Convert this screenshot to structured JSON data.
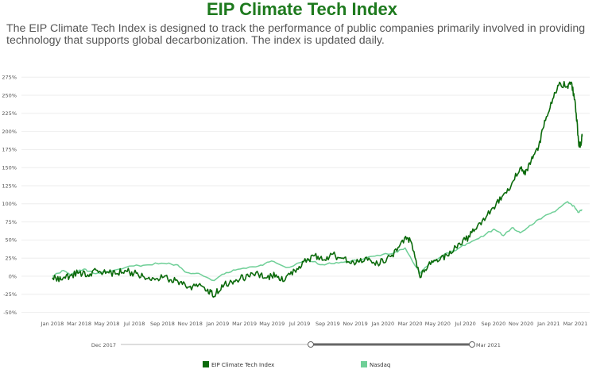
{
  "page": {
    "title": "EIP Climate Tech Index",
    "description": "The EIP Climate Tech Index is designed to track the performance of public companies primarily involved in providing technology that supports global decarbonization. The index is updated daily."
  },
  "colors": {
    "title": "#1e7a1e",
    "eip": "#0b6a0b",
    "nasdaq": "#6fcf97",
    "grid": "#eeeeee",
    "axis_text": "#555555"
  },
  "range_selector": {
    "start_label": "Dec 2017",
    "end_label": "Mar 2021"
  },
  "chart_data": {
    "type": "line",
    "title": "EIP Climate Tech Index",
    "xlabel": "",
    "ylabel": "",
    "y_unit": "%",
    "ylim": [
      -50,
      280
    ],
    "y_ticks": [
      -50,
      -25,
      0,
      25,
      50,
      75,
      100,
      125,
      150,
      175,
      200,
      225,
      250,
      275
    ],
    "y_tick_labels": [
      "-50%",
      "-25%",
      "0%",
      "25%",
      "50%",
      "75%",
      "100%",
      "125%",
      "150%",
      "175%",
      "200%",
      "225%",
      "250%",
      "275%"
    ],
    "x_tick_labels": [
      "Jan 2018",
      "Mar 2018",
      "May 2018",
      "Jul 2018",
      "Sep 2018",
      "Nov 2018",
      "Jan 2019",
      "Mar 2019",
      "May 2019",
      "Jul 2019",
      "Sep 2019",
      "Nov 2019",
      "Jan 2020",
      "Mar 2020",
      "May 2020",
      "Jul 2020",
      "Sep 2020",
      "Nov 2020",
      "Jan 2021",
      "Mar 2021"
    ],
    "grid": true,
    "legend_position": "bottom",
    "series": [
      {
        "name": "EIP Climate Tech Index",
        "color": "#0b6a0b",
        "points": [
          [
            "2018-01-01",
            -2
          ],
          [
            "2018-01-20",
            -5
          ],
          [
            "2018-02-08",
            0
          ],
          [
            "2018-03-01",
            5
          ],
          [
            "2018-03-20",
            2
          ],
          [
            "2018-04-10",
            8
          ],
          [
            "2018-05-01",
            6
          ],
          [
            "2018-05-20",
            3
          ],
          [
            "2018-06-10",
            8
          ],
          [
            "2018-06-30",
            4
          ],
          [
            "2018-07-20",
            0
          ],
          [
            "2018-08-10",
            -2
          ],
          [
            "2018-09-01",
            -2
          ],
          [
            "2018-09-20",
            -5
          ],
          [
            "2018-10-10",
            -8
          ],
          [
            "2018-10-30",
            -15
          ],
          [
            "2018-11-20",
            -12
          ],
          [
            "2018-12-10",
            -18
          ],
          [
            "2018-12-24",
            -28
          ],
          [
            "2019-01-10",
            -12
          ],
          [
            "2019-02-01",
            -8
          ],
          [
            "2019-02-20",
            -3
          ],
          [
            "2019-03-10",
            0
          ],
          [
            "2019-04-01",
            3
          ],
          [
            "2019-04-20",
            -2
          ],
          [
            "2019-05-10",
            2
          ],
          [
            "2019-05-30",
            -5
          ],
          [
            "2019-06-20",
            8
          ],
          [
            "2019-07-10",
            20
          ],
          [
            "2019-08-01",
            28
          ],
          [
            "2019-08-20",
            22
          ],
          [
            "2019-09-10",
            30
          ],
          [
            "2019-10-01",
            25
          ],
          [
            "2019-10-20",
            18
          ],
          [
            "2019-11-10",
            20
          ],
          [
            "2019-12-01",
            25
          ],
          [
            "2019-12-20",
            18
          ],
          [
            "2020-01-10",
            25
          ],
          [
            "2020-02-01",
            35
          ],
          [
            "2020-02-20",
            55
          ],
          [
            "2020-03-05",
            45
          ],
          [
            "2020-03-23",
            -2
          ],
          [
            "2020-04-10",
            15
          ],
          [
            "2020-05-01",
            20
          ],
          [
            "2020-05-20",
            30
          ],
          [
            "2020-06-10",
            40
          ],
          [
            "2020-07-01",
            50
          ],
          [
            "2020-07-20",
            62
          ],
          [
            "2020-08-10",
            80
          ],
          [
            "2020-09-01",
            95
          ],
          [
            "2020-09-20",
            110
          ],
          [
            "2020-10-10",
            125
          ],
          [
            "2020-10-30",
            150
          ],
          [
            "2020-11-10",
            140
          ],
          [
            "2020-11-25",
            165
          ],
          [
            "2020-12-10",
            180
          ],
          [
            "2020-12-25",
            215
          ],
          [
            "2021-01-10",
            245
          ],
          [
            "2021-01-25",
            268
          ],
          [
            "2021-02-10",
            262
          ],
          [
            "2021-02-20",
            268
          ],
          [
            "2021-03-01",
            238
          ],
          [
            "2021-03-08",
            185
          ],
          [
            "2021-03-12",
            180
          ],
          [
            "2021-03-16",
            193
          ]
        ]
      },
      {
        "name": "Nasdaq",
        "color": "#6fcf97",
        "points": [
          [
            "2018-01-01",
            0
          ],
          [
            "2018-01-26",
            8
          ],
          [
            "2018-02-08",
            2
          ],
          [
            "2018-03-12",
            10
          ],
          [
            "2018-04-02",
            4
          ],
          [
            "2018-05-01",
            6
          ],
          [
            "2018-06-20",
            14
          ],
          [
            "2018-07-20",
            15
          ],
          [
            "2018-08-30",
            18
          ],
          [
            "2018-10-01",
            16
          ],
          [
            "2018-10-25",
            5
          ],
          [
            "2018-11-20",
            4
          ],
          [
            "2018-12-24",
            -6
          ],
          [
            "2019-01-20",
            5
          ],
          [
            "2019-02-20",
            10
          ],
          [
            "2019-04-01",
            14
          ],
          [
            "2019-04-30",
            21
          ],
          [
            "2019-06-01",
            12
          ],
          [
            "2019-07-20",
            22
          ],
          [
            "2019-08-20",
            16
          ],
          [
            "2019-09-20",
            19
          ],
          [
            "2019-10-20",
            20
          ],
          [
            "2019-11-20",
            24
          ],
          [
            "2019-12-20",
            29
          ],
          [
            "2020-01-25",
            32
          ],
          [
            "2020-02-19",
            39
          ],
          [
            "2020-03-23",
            4
          ],
          [
            "2020-04-15",
            18
          ],
          [
            "2020-05-15",
            30
          ],
          [
            "2020-06-15",
            38
          ],
          [
            "2020-07-15",
            48
          ],
          [
            "2020-08-15",
            58
          ],
          [
            "2020-09-02",
            65
          ],
          [
            "2020-09-23",
            56
          ],
          [
            "2020-10-12",
            67
          ],
          [
            "2020-10-30",
            60
          ],
          [
            "2020-11-20",
            70
          ],
          [
            "2020-12-20",
            82
          ],
          [
            "2021-01-20",
            92
          ],
          [
            "2021-02-12",
            103
          ],
          [
            "2021-02-28",
            95
          ],
          [
            "2021-03-08",
            88
          ],
          [
            "2021-03-16",
            92
          ]
        ]
      }
    ]
  }
}
